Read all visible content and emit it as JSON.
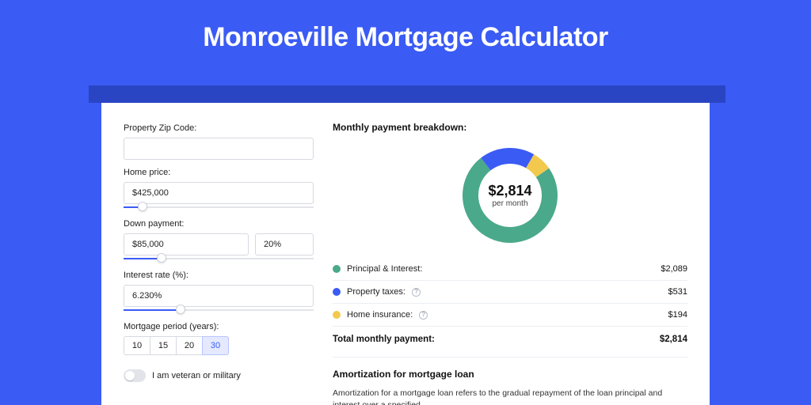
{
  "page": {
    "title": "Monroeville Mortgage Calculator",
    "background_color": "#3b5bf5",
    "stripe_color": "#2a45c4",
    "panel_bg": "#ffffff"
  },
  "form": {
    "zip_label": "Property Zip Code:",
    "zip_value": "",
    "home_price_label": "Home price:",
    "home_price_value": "$425,000",
    "home_price_slider_pct": 10,
    "down_payment_label": "Down payment:",
    "down_payment_value": "$85,000",
    "down_payment_pct_value": "20%",
    "down_payment_slider_pct": 20,
    "interest_label": "Interest rate (%):",
    "interest_value": "6.230%",
    "interest_slider_pct": 30,
    "period_label": "Mortgage period (years):",
    "periods": [
      "10",
      "15",
      "20",
      "30"
    ],
    "period_selected_index": 3,
    "veteran_label": "I am veteran or military",
    "veteran_on": false
  },
  "breakdown": {
    "title": "Monthly payment breakdown:",
    "center_value": "$2,814",
    "center_sub": "per month",
    "donut": {
      "type": "donut",
      "radius": 60,
      "inner_radius": 40,
      "background_color": "#ffffff",
      "slices": [
        {
          "label": "Principal & Interest",
          "value": 2089,
          "color": "#4aa98a"
        },
        {
          "label": "Property taxes",
          "value": 531,
          "color": "#3b5bf5"
        },
        {
          "label": "Home insurance",
          "value": 194,
          "color": "#f2c94c"
        }
      ],
      "start_angle_deg": -35
    },
    "rows": [
      {
        "label": "Principal & Interest:",
        "value": "$2,089",
        "swatch": "#4aa98a",
        "help": false
      },
      {
        "label": "Property taxes:",
        "value": "$531",
        "swatch": "#3b5bf5",
        "help": true
      },
      {
        "label": "Home insurance:",
        "value": "$194",
        "swatch": "#f2c94c",
        "help": true
      }
    ],
    "total_label": "Total monthly payment:",
    "total_value": "$2,814"
  },
  "amortization": {
    "title": "Amortization for mortgage loan",
    "text": "Amortization for a mortgage loan refers to the gradual repayment of the loan principal and interest over a specified"
  },
  "style": {
    "input_border": "#d7d9e0",
    "slider_track": "#e2e4ea",
    "slider_fill": "#3b5bf5",
    "divider": "#eceef3",
    "label_fontsize": 11,
    "title_fontsize": 34
  }
}
